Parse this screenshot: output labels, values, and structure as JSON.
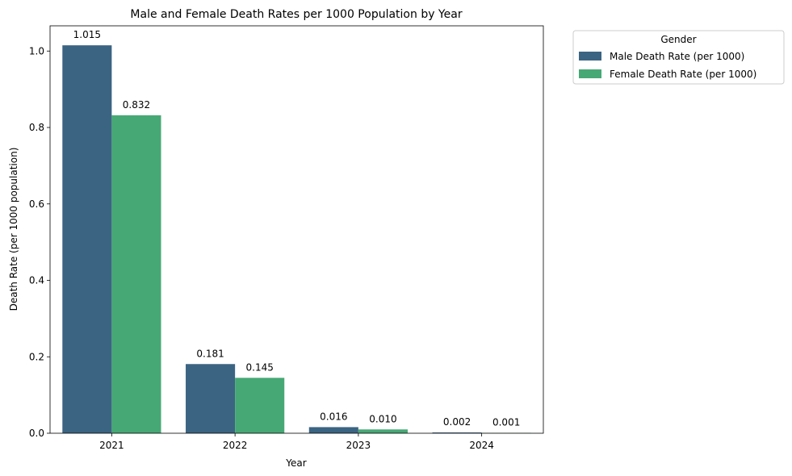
{
  "chart_data": {
    "type": "bar",
    "title": "Male and Female Death Rates per 1000 Population by Year",
    "xlabel": "Year",
    "ylabel": "Death Rate (per 1000 population)",
    "categories": [
      "2021",
      "2022",
      "2023",
      "2024"
    ],
    "ylim": [
      0,
      1.066
    ],
    "yticks": [
      0.0,
      0.2,
      0.4,
      0.6,
      0.8,
      1.0
    ],
    "ytick_labels": [
      "0.0",
      "0.2",
      "0.4",
      "0.6",
      "0.8",
      "1.0"
    ],
    "grid": false,
    "legend": {
      "title": "Gender",
      "placement": "outside top-right"
    },
    "series": [
      {
        "name": "Male Death Rate (per 1000)",
        "color": "#3b6482",
        "values": [
          1.015,
          0.181,
          0.016,
          0.002
        ],
        "labels": [
          "1.015",
          "0.181",
          "0.016",
          "0.002"
        ]
      },
      {
        "name": "Female Death Rate (per 1000)",
        "color": "#46a875",
        "values": [
          0.832,
          0.145,
          0.01,
          0.001
        ],
        "labels": [
          "0.832",
          "0.145",
          "0.010",
          "0.001"
        ]
      }
    ]
  }
}
